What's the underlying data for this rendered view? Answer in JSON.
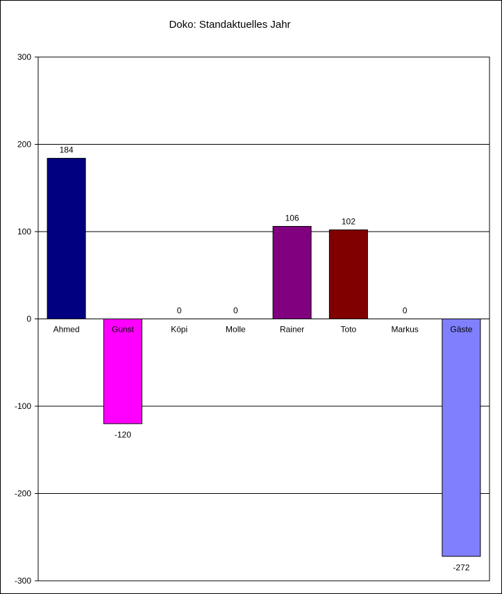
{
  "chart_data": {
    "type": "bar",
    "title": "Doko: Standaktuelles Jahr",
    "xlabel": "",
    "ylabel": "",
    "ylim": [
      -300,
      300
    ],
    "yticks": [
      300,
      200,
      100,
      0,
      -100,
      -200,
      -300
    ],
    "grid": true,
    "categories": [
      "Ahmed",
      "Gunst",
      "Köpi",
      "Molle",
      "Rainer",
      "Toto",
      "Markus",
      "Gäste"
    ],
    "values": [
      184,
      -120,
      0,
      0,
      106,
      102,
      0,
      -272
    ],
    "data_labels": [
      "184",
      "-120",
      "0",
      "0",
      "106",
      "102",
      "0",
      "-272"
    ],
    "colors": [
      "#000080",
      "#FF00FF",
      "#FFFF00",
      "#00FFFF",
      "#800080",
      "#800000",
      "#008080",
      "#8080FF"
    ]
  }
}
